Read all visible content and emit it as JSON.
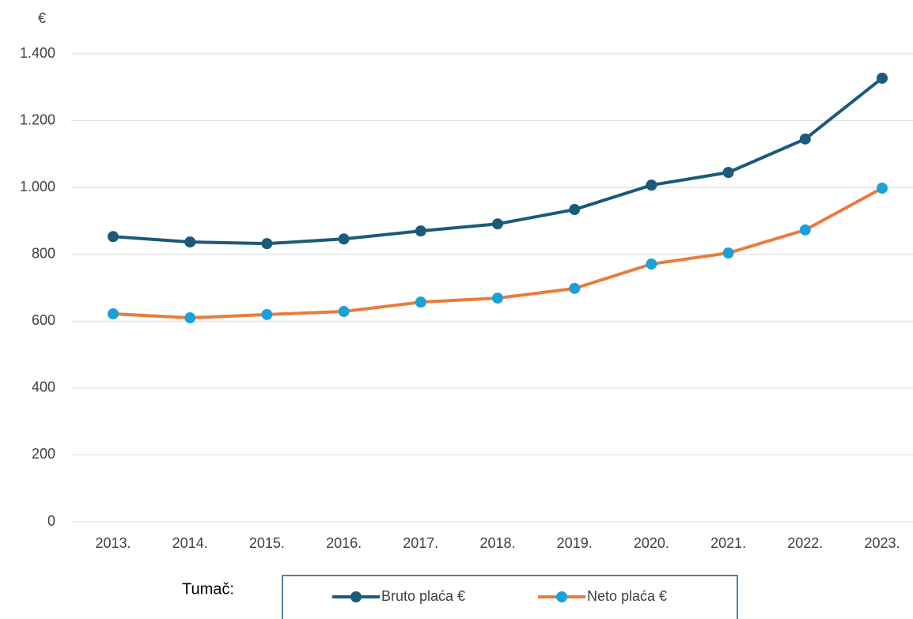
{
  "chart_data": {
    "type": "line",
    "y_unit_label": "€",
    "categories": [
      "2013.",
      "2014.",
      "2015.",
      "2016.",
      "2017.",
      "2018.",
      "2019.",
      "2020.",
      "2021.",
      "2022.",
      "2023."
    ],
    "series": [
      {
        "name": "Bruto plaća €",
        "color": "#1a5a7a",
        "marker_color": "#1a5a7a",
        "values": [
          853,
          837,
          832,
          846,
          870,
          891,
          934,
          1007,
          1045,
          1145,
          1327
        ]
      },
      {
        "name": "Neto plaća €",
        "color": "#e97c3b",
        "marker_color": "#1ba1da",
        "values": [
          622,
          610,
          620,
          629,
          657,
          669,
          698,
          771,
          804,
          873,
          998
        ]
      }
    ],
    "ylim": [
      0,
      1400
    ],
    "yticks": [
      0,
      200,
      400,
      600,
      800,
      {
        "value": 1000,
        "label": "1.000"
      },
      {
        "value": 1200,
        "label": "1.200"
      },
      {
        "value": 1400,
        "label": "1.400"
      }
    ],
    "grid": true,
    "legend_title": "Tumač:",
    "legend_position": "bottom"
  }
}
